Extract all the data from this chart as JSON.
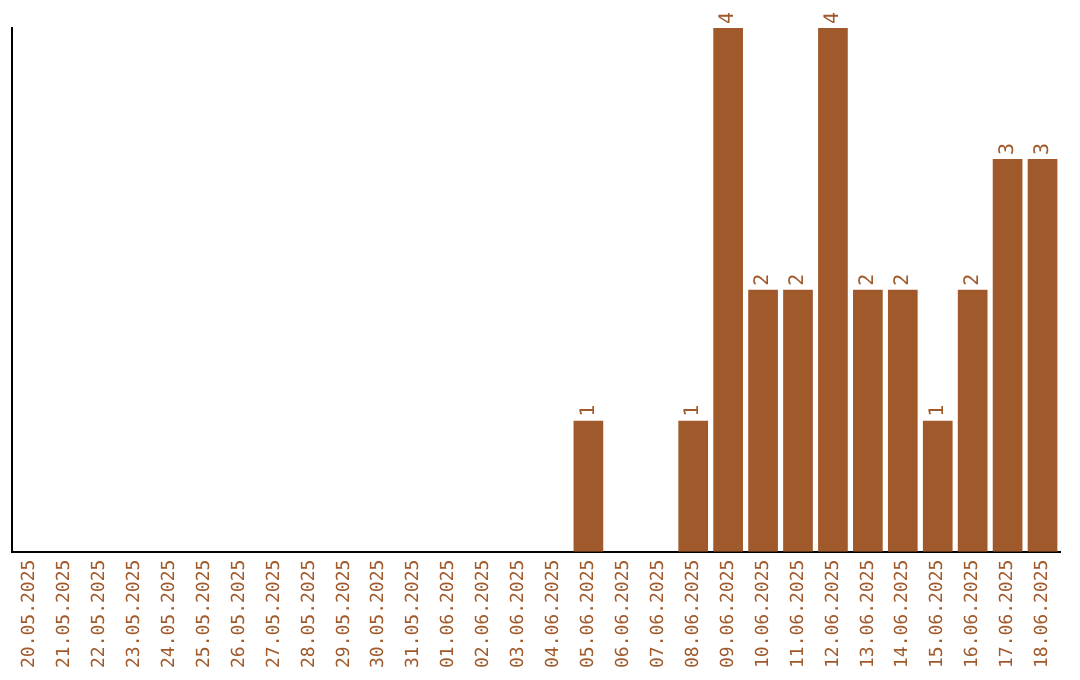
{
  "chart_data": {
    "type": "bar",
    "categories": [
      "20.05.2025",
      "21.05.2025",
      "22.05.2025",
      "23.05.2025",
      "24.05.2025",
      "25.05.2025",
      "26.05.2025",
      "27.05.2025",
      "28.05.2025",
      "29.05.2025",
      "30.05.2025",
      "31.05.2025",
      "01.06.2025",
      "02.06.2025",
      "03.06.2025",
      "04.06.2025",
      "05.06.2025",
      "06.06.2025",
      "07.06.2025",
      "08.06.2025",
      "09.06.2025",
      "10.06.2025",
      "11.06.2025",
      "12.06.2025",
      "13.06.2025",
      "14.06.2025",
      "15.06.2025",
      "16.06.2025",
      "17.06.2025",
      "18.06.2025"
    ],
    "values": [
      null,
      null,
      null,
      null,
      null,
      null,
      null,
      null,
      null,
      null,
      null,
      null,
      null,
      null,
      null,
      null,
      1,
      null,
      null,
      1,
      4,
      2,
      2,
      4,
      2,
      2,
      1,
      2,
      3,
      3
    ],
    "data_labels": true,
    "color": "#a0592a",
    "grid": false,
    "legend": false,
    "tick_labels": "x"
  }
}
